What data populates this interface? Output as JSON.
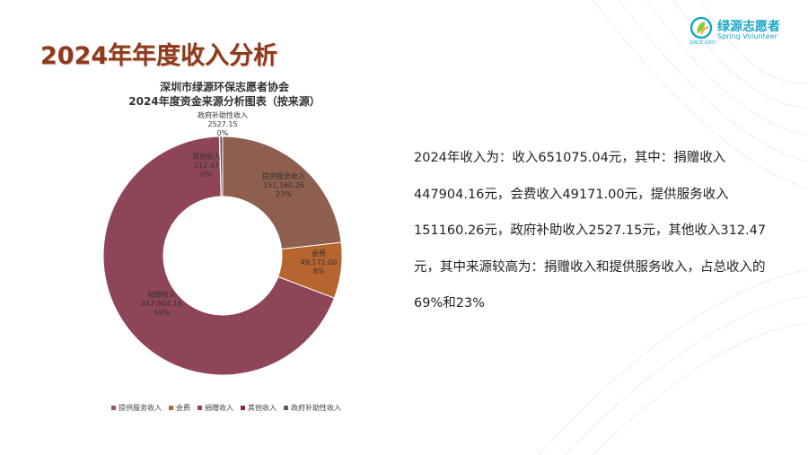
{
  "slide": {
    "title": "2024年年度收入分析",
    "logo_cn": "绿源志愿者",
    "logo_en": "Spring Volunteer",
    "logo_small": "SINCE 2007",
    "summary": "2024年收入为：收入651075.04元，其中：捐赠收入447904.16元，会费收入49171.00元，提供服务收入151160.26元，政府补助收入2527.15元，其他收入312.47元，其中来源较高为：捐赠收入和提供服务收入，占总收入的69%和23%"
  },
  "chart_data": {
    "type": "pie",
    "title": "深圳市绿源环保志愿者协会",
    "subtitle": "2024年度资金来源分析图表（按来源）",
    "legend_position": "bottom",
    "slices": [
      {
        "name": "提供服务收入",
        "value": 151160.26,
        "value_label": "151,160.26",
        "percent_label": "23%",
        "color": "#8e5e4f"
      },
      {
        "name": "会费",
        "value": 49171.0,
        "value_label": "49,171.00",
        "percent_label": "8%",
        "color": "#b5652d"
      },
      {
        "name": "捐赠收入",
        "value": 447904.16,
        "value_label": "447,904.16",
        "percent_label": "69%",
        "color": "#8e4558"
      },
      {
        "name": "其他收入",
        "value": 312.47,
        "value_label": "312.47",
        "percent_label": "0%",
        "color": "#8b2a2a"
      },
      {
        "name": "政府补助性收入",
        "value": 2527.15,
        "value_label": "2527.15",
        "percent_label": "0%",
        "color": "#6e5a52"
      }
    ]
  }
}
